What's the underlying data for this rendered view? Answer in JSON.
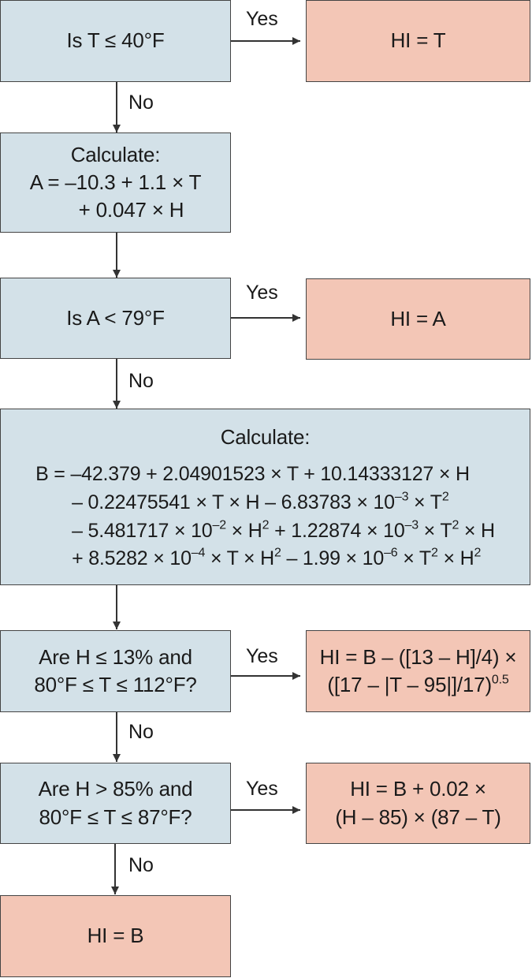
{
  "nodes": {
    "q1": "Is T ≤ 40°F",
    "r1": "HI = T",
    "calcA": [
      "Calculate:",
      "A = –10.3 + 1.1 × T",
      "+ 0.047 × H"
    ],
    "q2": "Is A < 79°F",
    "r2": "HI = A",
    "calcB_title": "Calculate:",
    "calcB": {
      "l1": "B = –42.379 + 2.04901523 × T + 10.14333127 × H",
      "l2a": "– 0.22475541 × T × H – 6.83783 × 10",
      "l2b": "–3",
      "l2c": " × T",
      "l2d": "2",
      "l3a": "– 5.481717 × 10",
      "l3b": "–2",
      "l3c": " × H",
      "l3d": "2",
      "l3e": " + 1.22874 × 10",
      "l3f": "–3",
      "l3g": " × T",
      "l3h": "2",
      "l3i": " × H",
      "l4a": "+ 8.5282 × 10",
      "l4b": "–4",
      "l4c": " × T × H",
      "l4d": "2",
      "l4e": " – 1.99 × 10",
      "l4f": "–6",
      "l4g": " × T",
      "l4h": "2",
      "l4i": " × H",
      "l4j": "2"
    },
    "q3": [
      "Are H ≤ 13% and",
      "80°F ≤ T ≤ 112°F?"
    ],
    "r3": {
      "l1": "HI = B – ([13 – H]/4) ×",
      "l2a": "([17 – |T – 95|]/17)",
      "l2b": "0.5"
    },
    "q4": [
      "Are H > 85% and",
      "80°F ≤ T ≤ 87°F?"
    ],
    "r4": [
      "HI = B + 0.02 ×",
      "(H – 85) × (87 – T)"
    ],
    "final": "HI = B"
  },
  "labels": {
    "yes": "Yes",
    "no": "No"
  },
  "colors": {
    "decision": "#d3e1e8",
    "result": "#f3c6b6",
    "border": "#444444",
    "arrow": "#333333"
  }
}
